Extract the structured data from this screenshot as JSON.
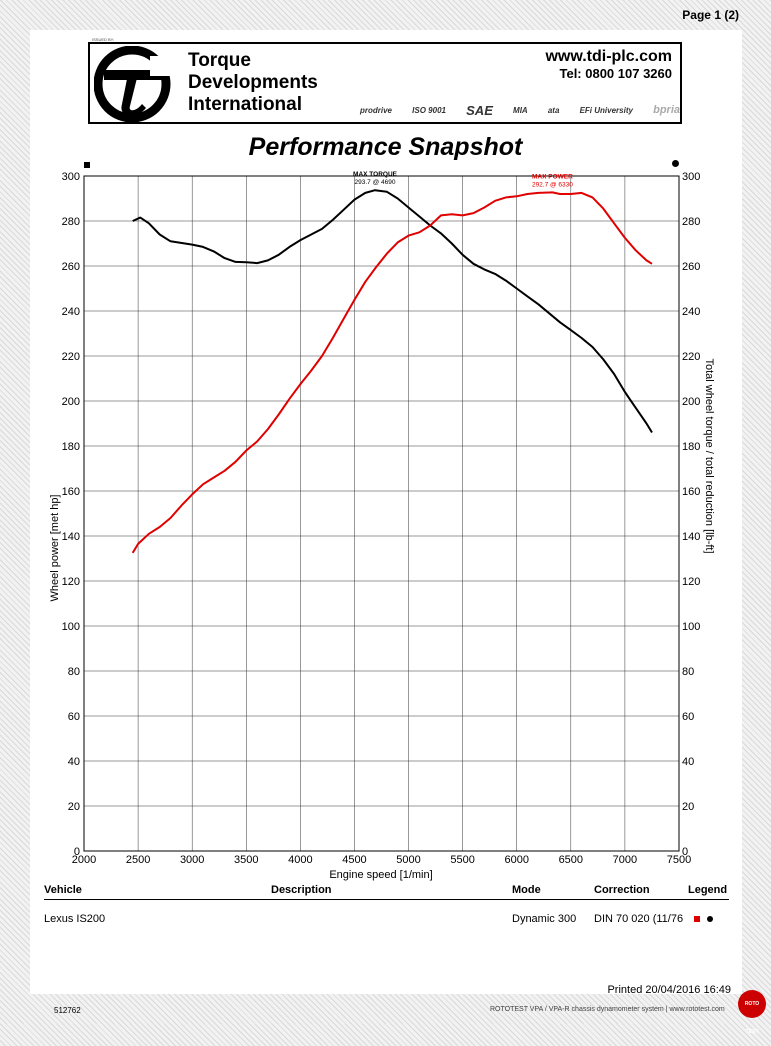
{
  "page": {
    "number": "Page 1 (2)"
  },
  "header": {
    "issued_by": "ISSUED BY:",
    "company_lines": [
      "Torque",
      "Developments",
      "International"
    ],
    "website": "www.tdi-plc.com",
    "phone": "Tel: 0800 107 3260",
    "accreditations": [
      "prodrive",
      "ISO 9001",
      "SAE",
      "MIA",
      "ata",
      "EFi University",
      "bpria"
    ]
  },
  "title": "Performance Snapshot",
  "chart_data": {
    "type": "line",
    "title": "Performance Snapshot",
    "xlabel": "Engine speed [1/min]",
    "ylabel_left": "Wheel power [met hp]",
    "ylabel_right": "Total wheel torque / total reduction [lb-ft]",
    "xlim": [
      2000,
      7500
    ],
    "ylim": [
      0,
      300
    ],
    "x_ticks": [
      2000,
      2500,
      3000,
      3500,
      4000,
      4500,
      5000,
      5500,
      6000,
      6500,
      7000,
      7500
    ],
    "y_ticks": [
      0,
      20,
      40,
      60,
      80,
      100,
      120,
      140,
      160,
      180,
      200,
      220,
      240,
      260,
      280,
      300
    ],
    "grid": true,
    "series": [
      {
        "name": "Torque",
        "color": "#000000",
        "points": [
          [
            2450,
            280
          ],
          [
            2520,
            281.5
          ],
          [
            2600,
            279
          ],
          [
            2700,
            274
          ],
          [
            2800,
            271
          ],
          [
            3000,
            269.5
          ],
          [
            3100,
            268.5
          ],
          [
            3200,
            266.5
          ],
          [
            3300,
            263.5
          ],
          [
            3400,
            261.8
          ],
          [
            3500,
            261.7
          ],
          [
            3600,
            261.3
          ],
          [
            3700,
            262.5
          ],
          [
            3800,
            265
          ],
          [
            3900,
            268.5
          ],
          [
            4000,
            271.5
          ],
          [
            4100,
            274
          ],
          [
            4200,
            276.5
          ],
          [
            4300,
            280.5
          ],
          [
            4400,
            285
          ],
          [
            4500,
            289.5
          ],
          [
            4600,
            292.5
          ],
          [
            4690,
            293.7
          ],
          [
            4800,
            293
          ],
          [
            4900,
            290
          ],
          [
            5000,
            286
          ],
          [
            5100,
            282
          ],
          [
            5200,
            278
          ],
          [
            5300,
            274.5
          ],
          [
            5400,
            270
          ],
          [
            5500,
            265
          ],
          [
            5600,
            261
          ],
          [
            5700,
            258.5
          ],
          [
            5800,
            256.5
          ],
          [
            5900,
            253.5
          ],
          [
            6000,
            250
          ],
          [
            6100,
            246.5
          ],
          [
            6200,
            243
          ],
          [
            6300,
            239
          ],
          [
            6400,
            235
          ],
          [
            6500,
            231.5
          ],
          [
            6600,
            228
          ],
          [
            6700,
            224
          ],
          [
            6800,
            218.5
          ],
          [
            6900,
            212
          ],
          [
            7000,
            204
          ],
          [
            7100,
            197
          ],
          [
            7200,
            190
          ],
          [
            7250,
            186
          ]
        ]
      },
      {
        "name": "Power",
        "color": "#e00000",
        "points": [
          [
            2450,
            132.5
          ],
          [
            2500,
            136.5
          ],
          [
            2600,
            141
          ],
          [
            2700,
            144
          ],
          [
            2800,
            148
          ],
          [
            2900,
            153.5
          ],
          [
            3000,
            158.5
          ],
          [
            3100,
            163
          ],
          [
            3200,
            166
          ],
          [
            3300,
            169
          ],
          [
            3400,
            173
          ],
          [
            3500,
            178
          ],
          [
            3600,
            182
          ],
          [
            3700,
            187.5
          ],
          [
            3800,
            194
          ],
          [
            3900,
            201
          ],
          [
            4000,
            207.5
          ],
          [
            4100,
            213.5
          ],
          [
            4200,
            220
          ],
          [
            4300,
            228
          ],
          [
            4400,
            236.5
          ],
          [
            4500,
            245
          ],
          [
            4600,
            253
          ],
          [
            4700,
            259.5
          ],
          [
            4800,
            265.5
          ],
          [
            4900,
            270.5
          ],
          [
            5000,
            273.5
          ],
          [
            5100,
            275
          ],
          [
            5200,
            278
          ],
          [
            5300,
            282.5
          ],
          [
            5400,
            283
          ],
          [
            5500,
            282.5
          ],
          [
            5600,
            283.5
          ],
          [
            5700,
            286
          ],
          [
            5800,
            289
          ],
          [
            5900,
            290.5
          ],
          [
            6000,
            291
          ],
          [
            6100,
            292
          ],
          [
            6200,
            292.5
          ],
          [
            6330,
            292.7
          ],
          [
            6400,
            292
          ],
          [
            6500,
            292
          ],
          [
            6600,
            292.5
          ],
          [
            6700,
            290.5
          ],
          [
            6800,
            285.5
          ],
          [
            6900,
            279
          ],
          [
            7000,
            272.5
          ],
          [
            7100,
            267
          ],
          [
            7200,
            262.5
          ],
          [
            7250,
            261
          ]
        ]
      }
    ],
    "annotations": [
      {
        "label": "MAX TORQUE",
        "value": "293.7 @ 4690",
        "x": 4690,
        "y": 293.7,
        "color": "#000000"
      },
      {
        "label": "MAX POWER",
        "value": "292.7 @ 6330",
        "x": 6330,
        "y": 292.7,
        "color": "#e00000"
      }
    ]
  },
  "table": {
    "headers": {
      "vehicle": "Vehicle",
      "description": "Description",
      "mode": "Mode",
      "correction": "Correction",
      "legend": "Legend"
    },
    "row": {
      "vehicle": "Lexus IS200",
      "description": "",
      "mode": "Dynamic 300",
      "correction": "DIN 70 020 (11/76"
    }
  },
  "footer": {
    "printed": "Printed 20/04/2016 16:49",
    "doc_id": "512762",
    "system": "ROTOTEST VPA / VPA-R chassis dynamometer system  |  www.rototest.com",
    "brand": "ROTO TEST"
  }
}
